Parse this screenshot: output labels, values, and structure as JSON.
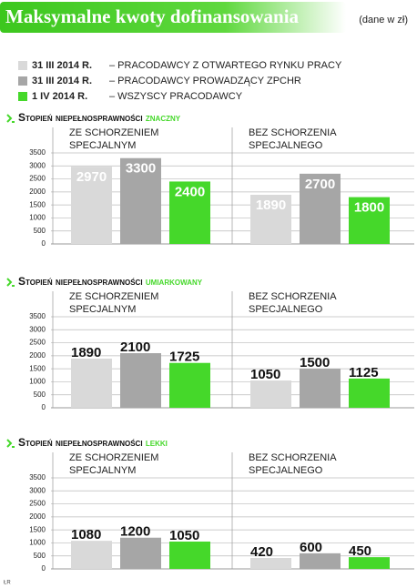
{
  "title": "Maksymalne kwoty dofinansowania",
  "unit_note": "(dane w zł)",
  "legend": [
    {
      "date": "31 III 2014 R.",
      "description": "– PRACODAWCY Z OTWARTEGO RYNKU PRACY",
      "color": "#d9d9d9"
    },
    {
      "date": "31 III 2014 R.",
      "description": "– PRACODAWCY PROWADZĄCY ZPCHR",
      "color": "#a6a6a6"
    },
    {
      "date": "1 IV 2014 R.",
      "description": "– WSZYSCY PRACODAWCY",
      "color": "#45d82a"
    }
  ],
  "credit": "ŁR",
  "chart_data": [
    {
      "type": "bar",
      "title": "Stopień niepełnosprawności",
      "subtitle": "znaczny",
      "categories": [
        "ZE SCHORZENIEM SPECJALNYM",
        "BEZ SCHORZENIA SPECJALNEGO"
      ],
      "series": [
        {
          "color": "#d9d9d9",
          "values": [
            2970,
            1890
          ]
        },
        {
          "color": "#a6a6a6",
          "values": [
            3300,
            2700
          ]
        },
        {
          "color": "#45d82a",
          "values": [
            2400,
            1800
          ]
        }
      ],
      "ylim": [
        0,
        3500
      ],
      "yticks": [
        0,
        500,
        1000,
        1500,
        2000,
        2500,
        3000,
        3500
      ],
      "grid": true,
      "label_position": "inside"
    },
    {
      "type": "bar",
      "title": "Stopień niepełnosprawności",
      "subtitle": "umiarkowany",
      "categories": [
        "ZE SCHORZENIEM SPECJALNYM",
        "BEZ SCHORZENIA SPECJALNEGO"
      ],
      "series": [
        {
          "color": "#d9d9d9",
          "values": [
            1890,
            1050
          ]
        },
        {
          "color": "#a6a6a6",
          "values": [
            2100,
            1500
          ]
        },
        {
          "color": "#45d82a",
          "values": [
            1725,
            1125
          ]
        }
      ],
      "ylim": [
        0,
        3500
      ],
      "yticks": [
        0,
        500,
        1000,
        1500,
        2000,
        2500,
        3000,
        3500
      ],
      "grid": true,
      "label_position": "above"
    },
    {
      "type": "bar",
      "title": "Stopień niepełnosprawności",
      "subtitle": "lekki",
      "categories": [
        "ZE SCHORZENIEM SPECJALNYM",
        "BEZ SCHORZENIA SPECJALNEGO"
      ],
      "series": [
        {
          "color": "#d9d9d9",
          "values": [
            1080,
            420
          ]
        },
        {
          "color": "#a6a6a6",
          "values": [
            1200,
            600
          ]
        },
        {
          "color": "#45d82a",
          "values": [
            1050,
            450
          ]
        }
      ],
      "ylim": [
        0,
        3500
      ],
      "yticks": [
        0,
        500,
        1000,
        1500,
        2000,
        2500,
        3000,
        3500
      ],
      "grid": true,
      "label_position": "above"
    }
  ]
}
